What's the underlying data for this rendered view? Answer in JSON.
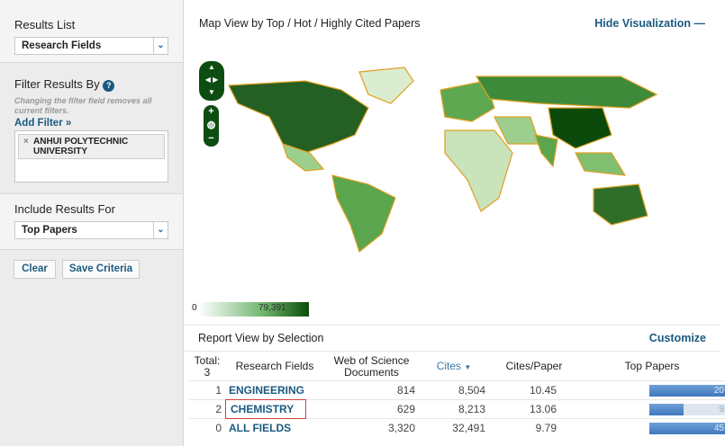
{
  "sidebar": {
    "results_list": {
      "label": "Results List",
      "value": "Research Fields"
    },
    "filter": {
      "label": "Filter Results By",
      "help_icon": "question-icon",
      "note": "Changing the filter field removes all current filters.",
      "add_filter": "Add Filter »",
      "chips": [
        "ANHUI POLYTECHNIC UNIVERSITY"
      ]
    },
    "include": {
      "label": "Include Results For",
      "value": "Top Papers"
    },
    "clear": "Clear",
    "save": "Save Criteria"
  },
  "map": {
    "title": "Map View by Top / Hot / Highly Cited Papers",
    "hide": "Hide Visualization",
    "hide_icon": "minus-icon",
    "legend_min": "0",
    "legend_max": "79,391",
    "colors": {
      "low": "#e8f3e2",
      "high": "#0b4a0b",
      "border": "#e0a020"
    }
  },
  "report": {
    "title": "Report View by Selection",
    "customize": "Customize",
    "headers": {
      "total": "Total:",
      "total_count": "3",
      "field": "Research Fields",
      "docs": "Web of Science Documents",
      "cites": "Cites",
      "cites_sort_icon": "caret-down-icon",
      "cpp": "Cites/Paper",
      "top": "Top Papers"
    },
    "rows": [
      {
        "rank": "1",
        "field": "ENGINEERING",
        "docs": "814",
        "cites": "8,504",
        "cpp": "10.45",
        "top": "20",
        "top_fill": 1.0
      },
      {
        "rank": "2",
        "field": "CHEMISTRY",
        "docs": "629",
        "cites": "8,213",
        "cpp": "13.06",
        "top": "9",
        "top_fill": 0.45,
        "highlighted": true
      },
      {
        "rank": "0",
        "field": "ALL FIELDS",
        "docs": "3,320",
        "cites": "32,491",
        "cpp": "9.79",
        "top": "45",
        "top_fill": 1.0
      }
    ]
  }
}
